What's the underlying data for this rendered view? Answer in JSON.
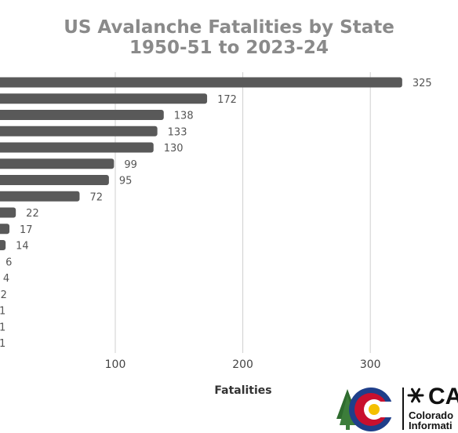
{
  "chart_data": {
    "type": "bar",
    "orientation": "horizontal",
    "title_lines": [
      "US Avalanche Fatalities by State",
      "1950-51 to 2023-24"
    ],
    "xlabel": "Fatalities",
    "xticks": [
      100,
      200,
      300
    ],
    "values": [
      325,
      172,
      138,
      133,
      130,
      99,
      95,
      72,
      22,
      17,
      14,
      6,
      4,
      2,
      1,
      1,
      1
    ],
    "data_labels": [
      "325",
      "172",
      "138",
      "133",
      "130",
      "99",
      "95",
      "72",
      "22",
      "17",
      "14",
      "6",
      "4",
      "2",
      "1",
      "1",
      "1"
    ],
    "bar_color": "#595959",
    "grid": true
  },
  "logo": {
    "mark_text": "CA",
    "line1": "Colorado",
    "line2": "Informati"
  }
}
